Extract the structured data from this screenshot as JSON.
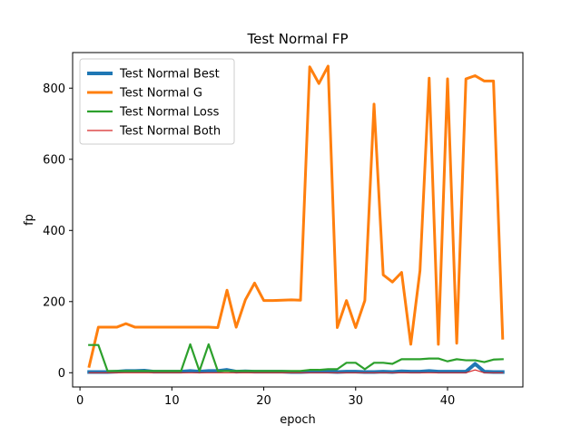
{
  "chart_data": {
    "type": "line",
    "title": "Test Normal FP",
    "xlabel": "epoch",
    "ylabel": "fp",
    "xlim": [
      -0.8,
      48.2
    ],
    "ylim": [
      -40,
      900
    ],
    "xticks": [
      0,
      10,
      20,
      30,
      40
    ],
    "yticks": [
      0,
      200,
      400,
      600,
      800
    ],
    "grid": false,
    "legend_position": "top-left",
    "x": [
      1,
      2,
      3,
      4,
      5,
      6,
      7,
      8,
      9,
      10,
      11,
      12,
      13,
      14,
      15,
      16,
      17,
      18,
      19,
      20,
      21,
      22,
      23,
      24,
      25,
      26,
      27,
      28,
      29,
      30,
      31,
      32,
      33,
      34,
      35,
      36,
      37,
      38,
      39,
      40,
      41,
      42,
      43,
      44,
      45,
      46
    ],
    "series": [
      {
        "name": "Test Normal Best",
        "color": "#1f77b4",
        "width": 4,
        "values": [
          2,
          2,
          2,
          3,
          5,
          5,
          6,
          3,
          3,
          3,
          3,
          5,
          3,
          5,
          5,
          8,
          3,
          4,
          3,
          3,
          3,
          3,
          2,
          2,
          3,
          3,
          3,
          2,
          3,
          3,
          2,
          2,
          3,
          2,
          4,
          3,
          3,
          5,
          3,
          3,
          3,
          3,
          25,
          3,
          2,
          2
        ]
      },
      {
        "name": "Test Normal G",
        "color": "#ff7f0e",
        "width": 3,
        "values": [
          18,
          128,
          128,
          128,
          138,
          128,
          128,
          128,
          128,
          128,
          128,
          128,
          128,
          128,
          127,
          232,
          128,
          205,
          252,
          203,
          203,
          204,
          205,
          204,
          860,
          813,
          862,
          127,
          203,
          127,
          203,
          755,
          275,
          255,
          282,
          80,
          287,
          828,
          80,
          826,
          83,
          826,
          835,
          820,
          820,
          97
        ]
      },
      {
        "name": "Test Normal Loss",
        "color": "#2ca02c",
        "width": 2.2,
        "values": [
          78,
          78,
          5,
          5,
          5,
          5,
          5,
          5,
          5,
          5,
          5,
          80,
          5,
          80,
          5,
          5,
          5,
          5,
          5,
          5,
          5,
          5,
          5,
          5,
          8,
          8,
          10,
          10,
          28,
          28,
          10,
          28,
          28,
          25,
          38,
          38,
          38,
          40,
          40,
          32,
          38,
          35,
          35,
          30,
          37,
          38
        ]
      },
      {
        "name": "Test Normal Both",
        "color": "#d62728",
        "width": 1.2,
        "values": [
          0,
          0,
          0,
          0,
          0,
          0,
          0,
          0,
          0,
          0,
          0,
          0,
          0,
          0,
          0,
          0,
          0,
          0,
          0,
          0,
          0,
          0,
          0,
          0,
          0,
          0,
          0,
          0,
          0,
          0,
          0,
          0,
          0,
          0,
          0,
          0,
          0,
          0,
          0,
          0,
          0,
          0,
          8,
          0,
          0,
          0
        ]
      }
    ]
  }
}
